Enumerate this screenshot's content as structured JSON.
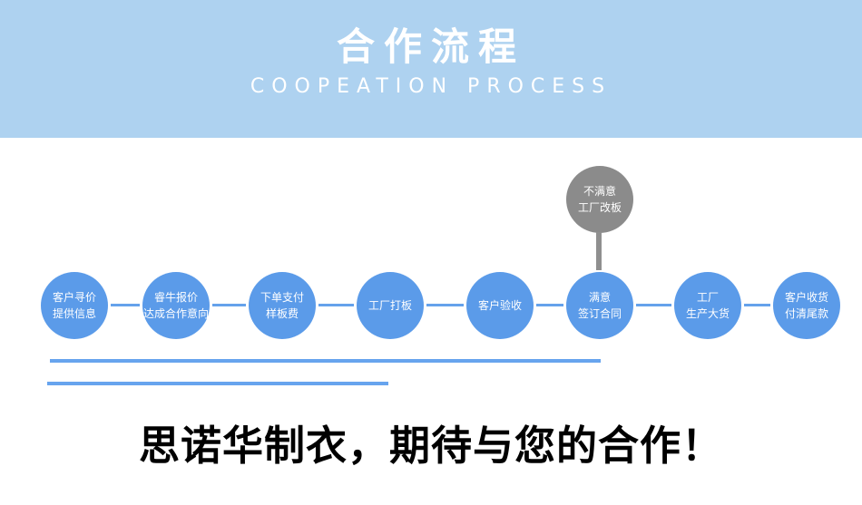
{
  "header": {
    "title": "合作流程",
    "subtitle": "COOPEATION PROCESS"
  },
  "flow": {
    "steps": [
      {
        "line1": "客户寻价",
        "line2": "提供信息"
      },
      {
        "line1": "睿牛报价",
        "line2": "达成合作意向"
      },
      {
        "line1": "下单支付",
        "line2": "样板费"
      },
      {
        "line1": "工厂打板",
        "line2": ""
      },
      {
        "line1": "客户验收",
        "line2": ""
      },
      {
        "line1": "满意",
        "line2": "签订合同"
      },
      {
        "line1": "工厂",
        "line2": "生产大货"
      },
      {
        "line1": "客户收货",
        "line2": "付清尾款"
      }
    ],
    "alt_step": {
      "line1": "不满意",
      "line2": "工厂改板"
    }
  },
  "footer": {
    "slogan": "思诺华制衣，期待与您的合作！"
  },
  "colors": {
    "banner_bg": "#AED2F0",
    "circle_blue": "#5B9BE9",
    "circle_gray": "#8B8B8B",
    "connector_blue": "#65A2EB",
    "connector_gray": "#8F8F8F",
    "rule_blue": "#67A4EE",
    "text_white": "#FFFFFF",
    "slogan_black": "#000000"
  }
}
